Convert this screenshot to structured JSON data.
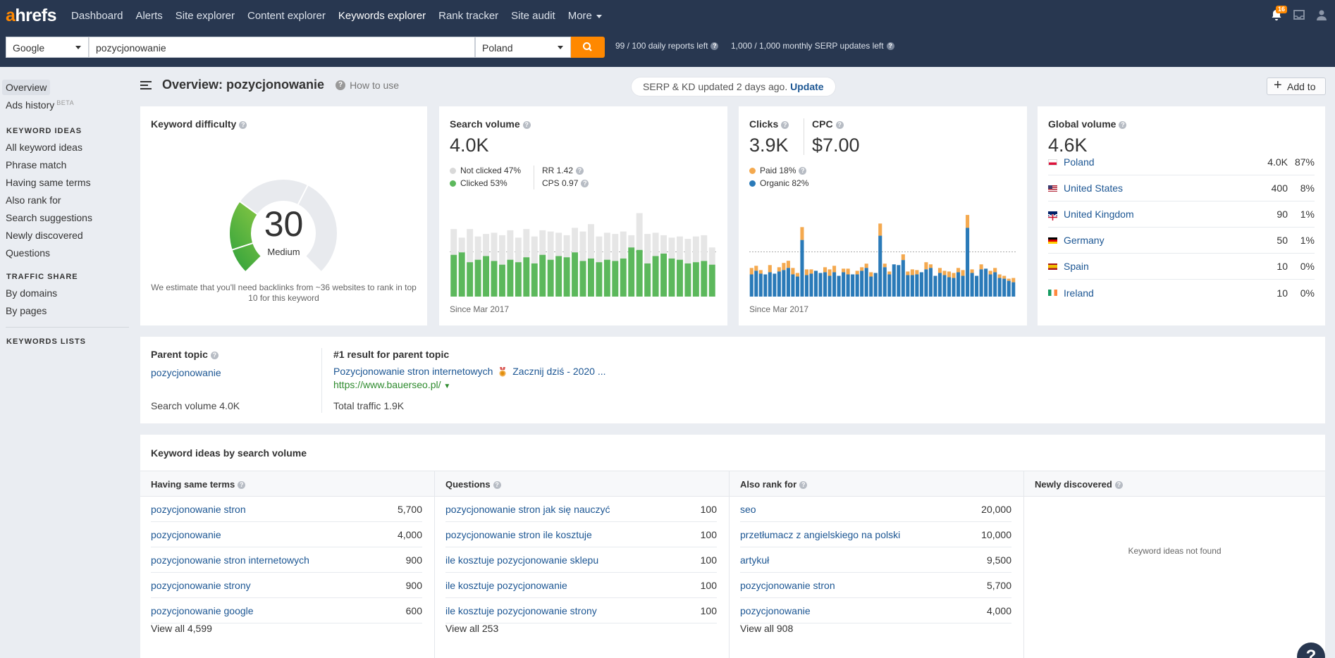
{
  "topnav": {
    "logo_a": "a",
    "logo_rest": "hrefs",
    "items": [
      "Dashboard",
      "Alerts",
      "Site explorer",
      "Content explorer",
      "Keywords explorer",
      "Rank tracker",
      "Site audit",
      "More"
    ],
    "notifications_count": "16"
  },
  "searchbar": {
    "engine": "Google",
    "query": "pozycjonowanie",
    "country": "Poland",
    "daily_reports": "99 / 100 daily reports left",
    "serp_updates": "1,000 / 1,000 monthly SERP updates left"
  },
  "sidebar": {
    "overview": "Overview",
    "ads_history": "Ads history",
    "beta": "BETA",
    "keyword_ideas_head": "KEYWORD IDEAS",
    "keyword_ideas": [
      "All keyword ideas",
      "Phrase match",
      "Having same terms",
      "Also rank for",
      "Search suggestions",
      "Newly discovered",
      "Questions"
    ],
    "traffic_share_head": "TRAFFIC SHARE",
    "traffic_share": [
      "By domains",
      "By pages"
    ],
    "keywords_lists_head": "KEYWORDS LISTS"
  },
  "header": {
    "title": "Overview: pozycjonowanie",
    "how_to_use": "How to use",
    "serp_note": "SERP & KD updated 2 days ago.",
    "update_link": "Update",
    "add_to": "Add to"
  },
  "kd": {
    "title": "Keyword difficulty",
    "value": "30",
    "level": "Medium",
    "score_fraction": 0.3,
    "note": "We estimate that you'll need backlinks from ~36 websites to rank in top 10 for this keyword"
  },
  "search_volume": {
    "title": "Search volume",
    "value": "4.0K",
    "not_clicked": "Not clicked 47%",
    "clicked": "Clicked 53%",
    "rr": "RR 1.42",
    "cps": "CPS 0.97",
    "since": "Since Mar 2017"
  },
  "clicks": {
    "title": "Clicks",
    "value": "3.9K",
    "cpc_title": "CPC",
    "cpc_value": "$7.00",
    "paid": "Paid 18%",
    "organic": "Organic 82%",
    "since": "Since Mar 2017"
  },
  "global_volume": {
    "title": "Global volume",
    "value": "4.6K",
    "rows": [
      {
        "country": "Poland",
        "volume": "4.0K",
        "pct": "87%",
        "flag": "pl"
      },
      {
        "country": "United States",
        "volume": "400",
        "pct": "8%",
        "flag": "us"
      },
      {
        "country": "United Kingdom",
        "volume": "90",
        "pct": "1%",
        "flag": "gb"
      },
      {
        "country": "Germany",
        "volume": "50",
        "pct": "1%",
        "flag": "de"
      },
      {
        "country": "Spain",
        "volume": "10",
        "pct": "0%",
        "flag": "es"
      },
      {
        "country": "Ireland",
        "volume": "10",
        "pct": "0%",
        "flag": "ie"
      }
    ]
  },
  "parent_topic": {
    "title": "Parent topic",
    "topic": "pozycjonowanie",
    "search_volume": "Search volume 4.0K",
    "result_title": "#1 result for parent topic",
    "result_link_a": "Pozycjonowanie stron internetowych",
    "result_link_b": "Zacznij dziś - 2020 ...",
    "result_url": "https://www.bauerseo.pl/",
    "total_traffic": "Total traffic 1.9K"
  },
  "keyword_ideas": {
    "title": "Keyword ideas by search volume",
    "columns": [
      {
        "head": "Having same terms",
        "rows": [
          {
            "kw": "pozycjonowanie stron",
            "num": "5,700"
          },
          {
            "kw": "pozycjonowanie",
            "num": "4,000"
          },
          {
            "kw": "pozycjonowanie stron internetowych",
            "num": "900"
          },
          {
            "kw": "pozycjonowanie strony",
            "num": "900"
          },
          {
            "kw": "pozycjonowanie google",
            "num": "600"
          }
        ],
        "view_all": "View all 4,599"
      },
      {
        "head": "Questions",
        "rows": [
          {
            "kw": "pozycjonowanie stron jak się nauczyć",
            "num": "100"
          },
          {
            "kw": "pozycjonowanie stron ile kosztuje",
            "num": "100"
          },
          {
            "kw": "ile kosztuje pozycjonowanie sklepu",
            "num": "100"
          },
          {
            "kw": "ile kosztuje pozycjonowanie",
            "num": "100"
          },
          {
            "kw": "ile kosztuje pozycjonowanie strony",
            "num": "100"
          }
        ],
        "view_all": "View all 253"
      },
      {
        "head": "Also rank for",
        "rows": [
          {
            "kw": "seo",
            "num": "20,000"
          },
          {
            "kw": "przetłumacz z angielskiego na polski",
            "num": "10,000"
          },
          {
            "kw": "artykuł",
            "num": "9,500"
          },
          {
            "kw": "pozycjonowanie stron",
            "num": "5,700"
          },
          {
            "kw": "pozycjonowanie",
            "num": "4,000"
          }
        ],
        "view_all": "View all 908"
      },
      {
        "head": "Newly discovered",
        "rows": [],
        "empty": "Keyword ideas not found"
      }
    ]
  },
  "help": "?",
  "colors": {
    "nav_bg": "#283750",
    "accent": "#ff8800",
    "link": "#1c5693",
    "green": "#5cb85c",
    "gray_bar": "#e4e4e4",
    "blue": "#2a7ab8",
    "orange": "#f4a94f"
  },
  "chart_data": [
    {
      "type": "bar",
      "name": "search_volume_history",
      "x_start": "Mar 2017",
      "series": [
        {
          "name": "Clicked",
          "values": [
            34,
            36,
            28,
            30,
            33,
            29,
            26,
            30,
            28,
            32,
            27,
            34,
            30,
            33,
            32,
            36,
            29,
            31,
            28,
            30,
            29,
            31,
            40,
            38,
            27,
            33,
            35,
            31,
            30,
            27,
            28,
            29,
            26
          ]
        },
        {
          "name": "Total",
          "values": [
            55,
            48,
            55,
            49,
            51,
            52,
            50,
            54,
            48,
            55,
            49,
            54,
            53,
            52,
            50,
            56,
            53,
            59,
            49,
            52,
            51,
            53,
            50,
            68,
            51,
            52,
            50,
            48,
            49,
            47,
            49,
            50,
            40
          ]
        }
      ]
    },
    {
      "type": "bar",
      "name": "clicks_history",
      "x_start": "Mar 2017",
      "series": [
        {
          "name": "Organic",
          "values": [
            31,
            36,
            32,
            31,
            34,
            32,
            35,
            37,
            40,
            31,
            28,
            79,
            30,
            32,
            36,
            33,
            34,
            29,
            34,
            29,
            34,
            31,
            31,
            31,
            36,
            40,
            28,
            33,
            85,
            41,
            31,
            45,
            44,
            51,
            30,
            30,
            31,
            34,
            38,
            40,
            29,
            33,
            30,
            27,
            26,
            34,
            29,
            96,
            33,
            29,
            38,
            39,
            31,
            34,
            26,
            25,
            22,
            20
          ]
        },
        {
          "name": "Paid",
          "values": [
            9,
            7,
            5,
            0,
            10,
            0,
            6,
            10,
            10,
            9,
            5,
            18,
            8,
            6,
            0,
            0,
            7,
            9,
            9,
            0,
            5,
            8,
            0,
            5,
            5,
            6,
            6,
            0,
            17,
            5,
            4,
            0,
            0,
            8,
            5,
            8,
            6,
            0,
            10,
            5,
            0,
            7,
            6,
            8,
            7,
            6,
            8,
            18,
            5,
            0,
            7,
            0,
            5,
            6,
            5,
            4,
            3,
            6
          ]
        }
      ]
    }
  ]
}
